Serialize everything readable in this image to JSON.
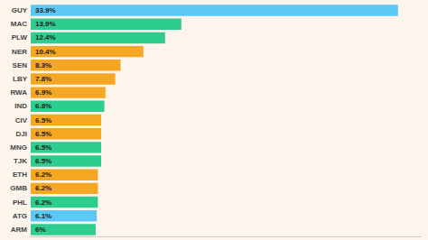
{
  "chart_data": {
    "type": "bar",
    "orientation": "horizontal",
    "categories": [
      "GUY",
      "MAC",
      "PLW",
      "NER",
      "SEN",
      "LBY",
      "RWA",
      "IND",
      "CIV",
      "DJI",
      "MNG",
      "TJK",
      "ETH",
      "GMB",
      "PHL",
      "ATG",
      "ARM"
    ],
    "values": [
      33.9,
      13.9,
      12.4,
      10.4,
      8.3,
      7.8,
      6.9,
      6.8,
      6.5,
      6.5,
      6.5,
      6.5,
      6.2,
      6.2,
      6.2,
      6.1,
      6.0
    ],
    "value_labels": [
      "33.9%",
      "13.9%",
      "12.4%",
      "10.4%",
      "8.3%",
      "7.8%",
      "6.9%",
      "6.8%",
      "6.5%",
      "6.5%",
      "6.5%",
      "6.5%",
      "6.2%",
      "6.2%",
      "6.2%",
      "6.1%",
      "6%"
    ],
    "colors": [
      "#5bc8f5",
      "#2ecc8e",
      "#2ecc8e",
      "#f5a623",
      "#f5a623",
      "#f5a623",
      "#f5a623",
      "#2ecc8e",
      "#f5a623",
      "#f5a623",
      "#2ecc8e",
      "#2ecc8e",
      "#f5a623",
      "#f5a623",
      "#2ecc8e",
      "#5bc8f5",
      "#2ecc8e"
    ],
    "xlim": [
      0,
      36
    ],
    "data_labels": true,
    "tick_labels": "y",
    "grid": false
  }
}
